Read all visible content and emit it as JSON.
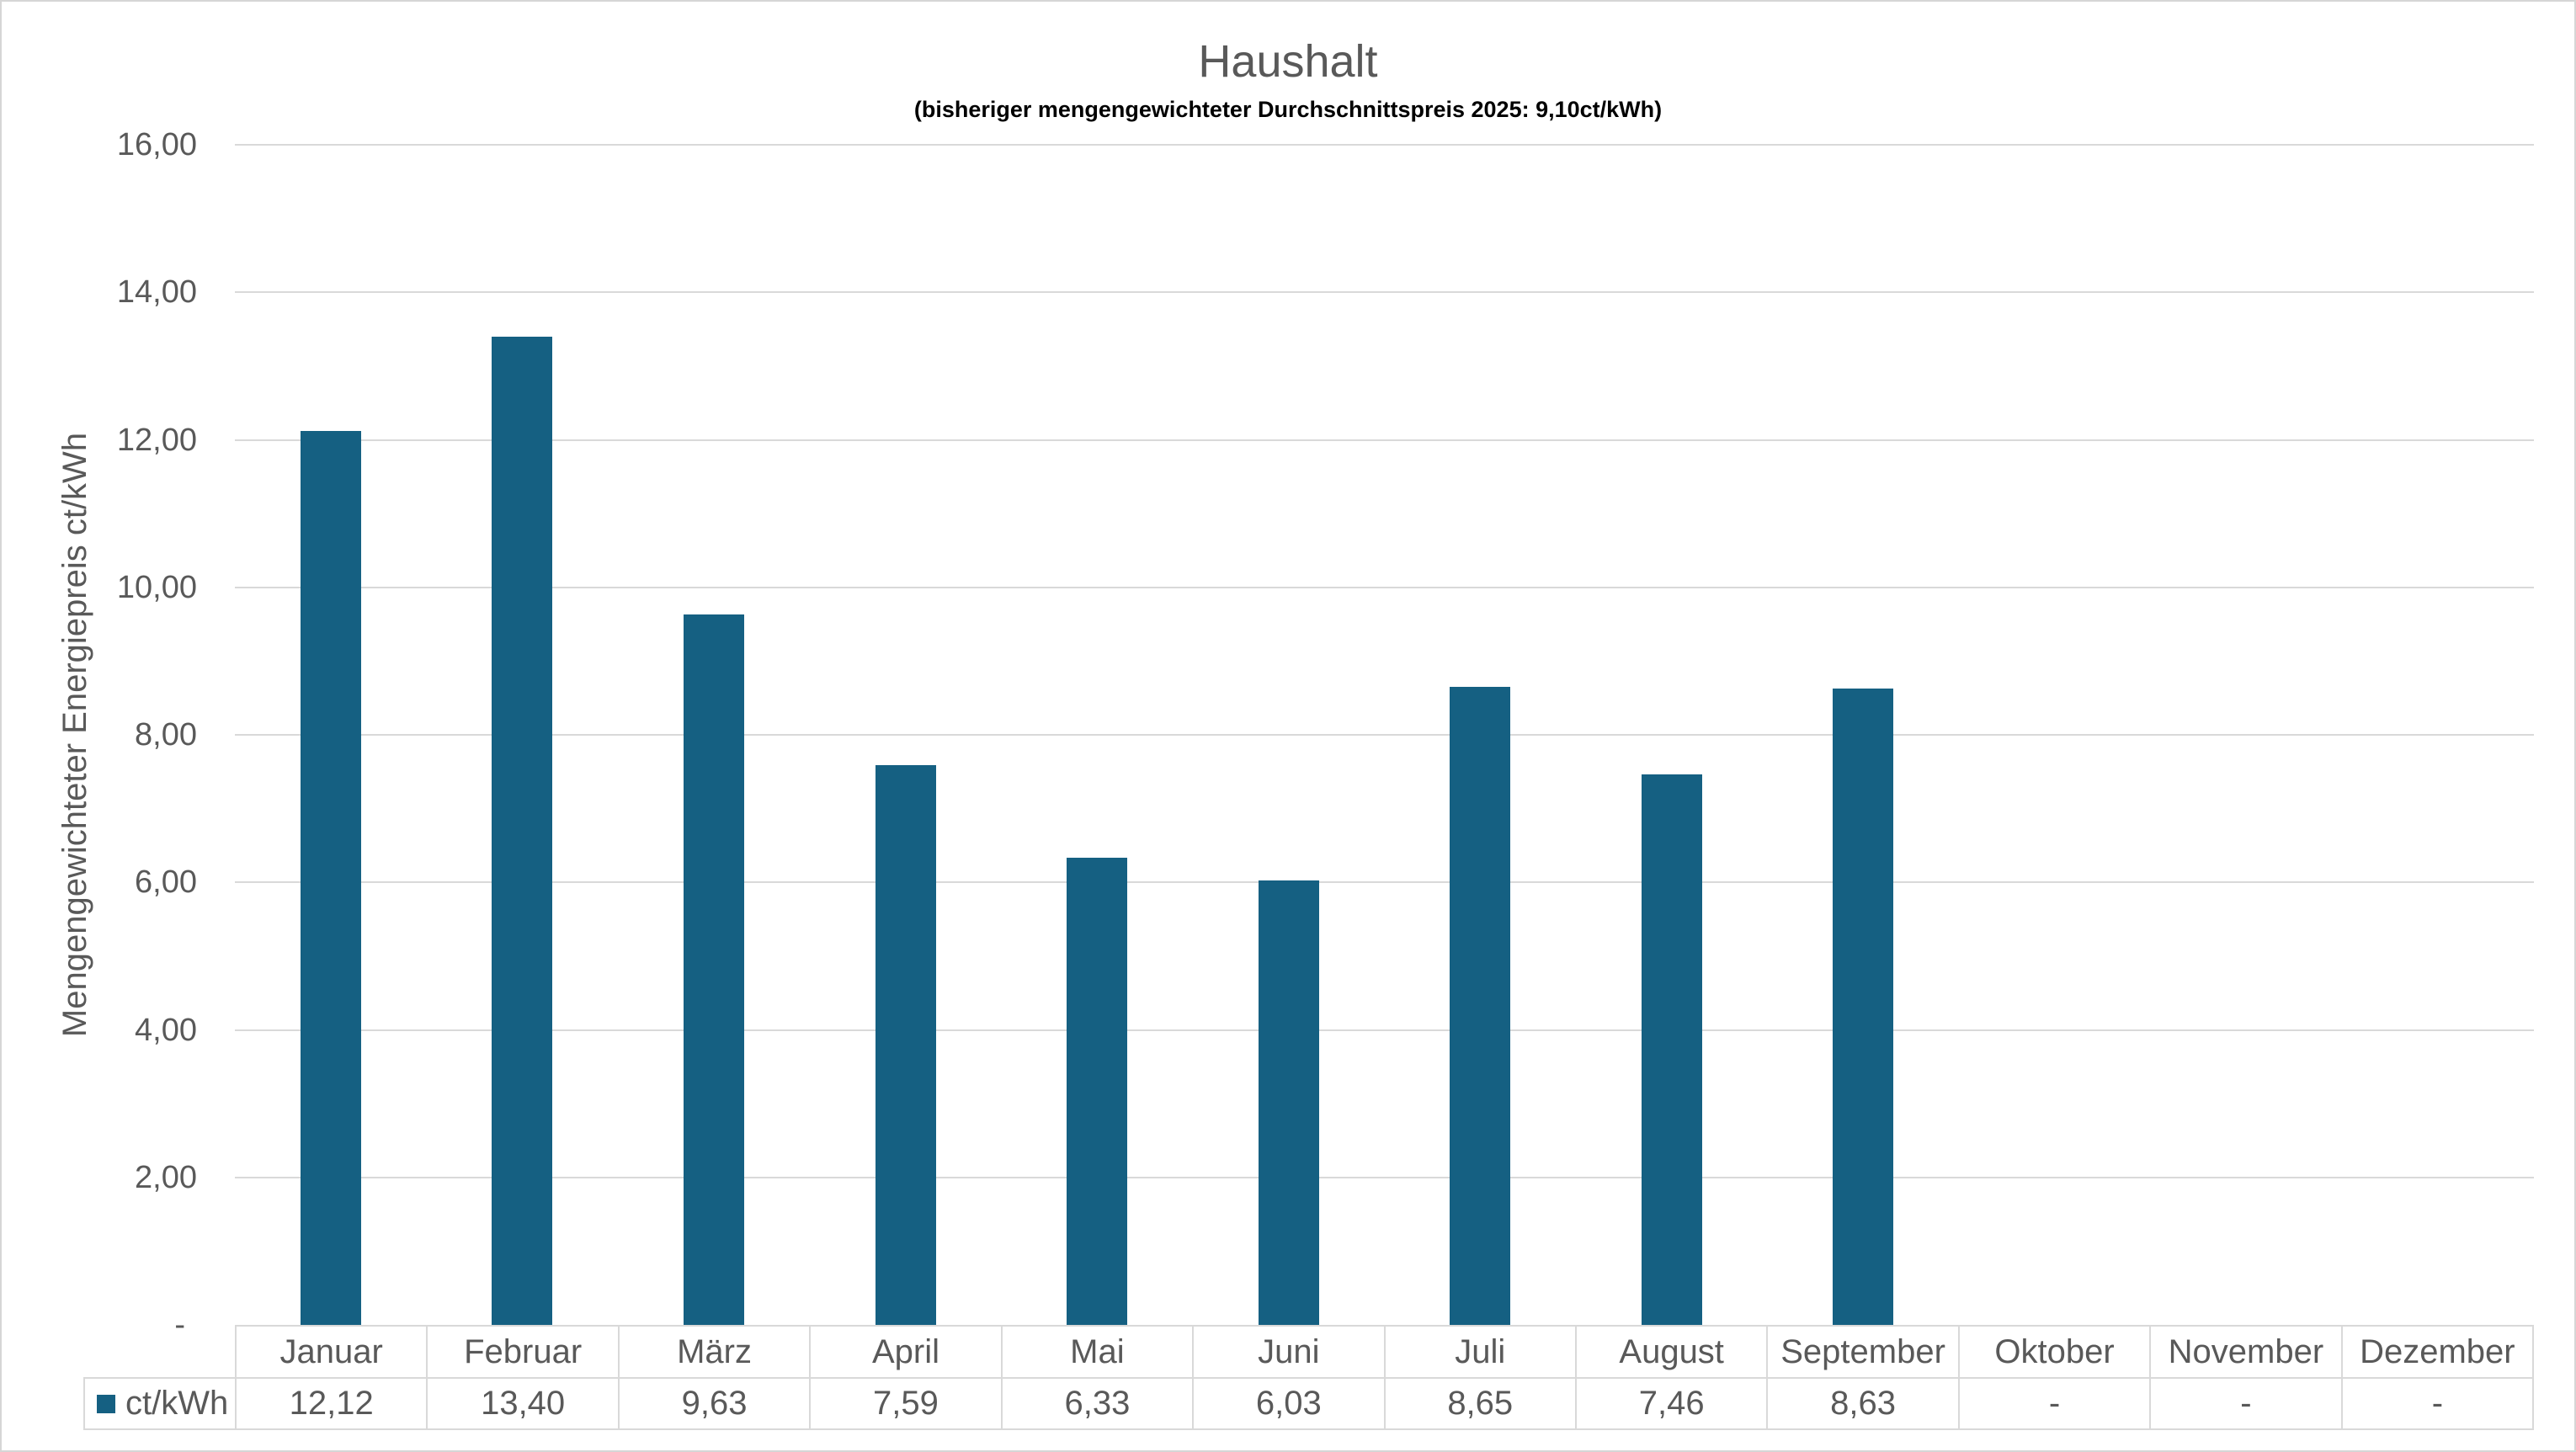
{
  "chart": {
    "title": "Haushalt",
    "subtitle": "(bisheriger mengengewichteter Durchschnittspreis 2025: 9,10ct/kWh)"
  },
  "chart_data": {
    "type": "bar",
    "title": "Haushalt",
    "subtitle": "(bisheriger mengengewichteter Durchschnittspreis 2025: 9,10ct/kWh)",
    "ylabel": "Mengengewichteter Energiepreis ct/kWh",
    "xlabel": "",
    "ylim": [
      0,
      16
    ],
    "ytick_step": 2,
    "ytick_labels_desc": [
      "16,00",
      "14,00",
      "12,00",
      "10,00",
      "8,00",
      "6,00",
      "4,00",
      "2,00",
      "-"
    ],
    "grid": true,
    "legend_position": "table-bottom-left",
    "categories": [
      "Januar",
      "Februar",
      "März",
      "April",
      "Mai",
      "Juni",
      "Juli",
      "August",
      "September",
      "Oktober",
      "November",
      "Dezember"
    ],
    "series": [
      {
        "name": "ct/kWh",
        "color": "#156082",
        "values": [
          12.12,
          13.4,
          9.63,
          7.59,
          6.33,
          6.03,
          8.65,
          7.46,
          8.63,
          null,
          null,
          null
        ],
        "labels": [
          "12,12",
          "13,40",
          "9,63",
          "7,59",
          "6,33",
          "6,03",
          "8,65",
          "7,46",
          "8,63",
          "-",
          "-",
          "-"
        ]
      }
    ]
  },
  "colors": {
    "bar": "#156082",
    "gridline": "#D9D9D9",
    "table_border": "#D9D9D9",
    "axis_text": "#595959",
    "title_text": "#595959",
    "subtitle_text": "#000000",
    "chart_border": "#D6D6D6"
  }
}
